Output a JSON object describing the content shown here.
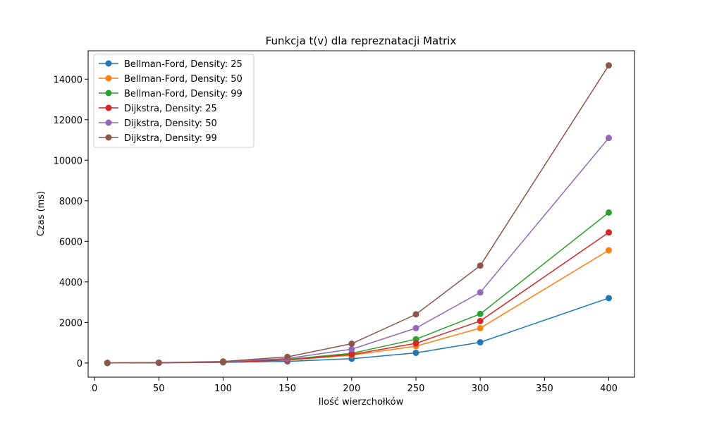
{
  "chart_data": {
    "type": "line",
    "title": "Funkcja t(v) dla repreznatacji Matrix",
    "xlabel": "Ilość wierzchołków",
    "ylabel": "Czas (ms)",
    "x": [
      10,
      50,
      100,
      150,
      200,
      250,
      300,
      400
    ],
    "xlim": [
      -5,
      420
    ],
    "ylim": [
      -700,
      15400
    ],
    "xticks": [
      0,
      50,
      100,
      150,
      200,
      250,
      300,
      350,
      400
    ],
    "yticks": [
      0,
      2000,
      4000,
      6000,
      8000,
      10000,
      12000,
      14000
    ],
    "grid": false,
    "legend_position": "top-left",
    "series": [
      {
        "name": "Bellman-Ford, Density: 25",
        "color": "#1f77b4",
        "values": [
          1,
          8,
          30,
          80,
          210,
          500,
          1020,
          3200
        ]
      },
      {
        "name": "Bellman-Ford, Density: 50",
        "color": "#ff7f0e",
        "values": [
          1,
          10,
          45,
          140,
          380,
          830,
          1720,
          5560
        ]
      },
      {
        "name": "Bellman-Ford, Density: 99",
        "color": "#2ca02c",
        "values": [
          2,
          12,
          55,
          180,
          480,
          1170,
          2420,
          7420
        ]
      },
      {
        "name": "Dijkstra, Density: 25",
        "color": "#d62728",
        "values": [
          1,
          10,
          45,
          150,
          420,
          970,
          2070,
          6440
        ]
      },
      {
        "name": "Dijkstra, Density: 50",
        "color": "#9467bd",
        "values": [
          2,
          13,
          60,
          220,
          680,
          1720,
          3480,
          11100
        ]
      },
      {
        "name": "Dijkstra, Density: 99",
        "color": "#8c564b",
        "values": [
          3,
          15,
          75,
          300,
          950,
          2400,
          4800,
          14680
        ]
      }
    ]
  }
}
